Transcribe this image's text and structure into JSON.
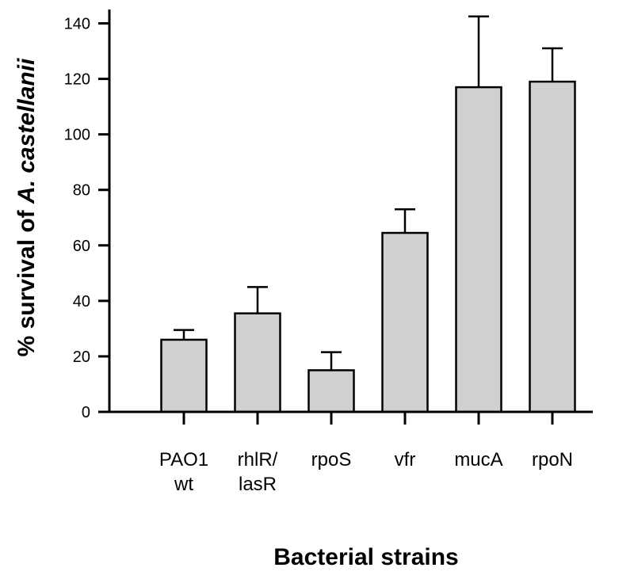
{
  "chart_data": {
    "type": "bar",
    "categories": [
      [
        "PAO1",
        "wt"
      ],
      [
        "rhlR/",
        "lasR"
      ],
      [
        "rpoS"
      ],
      [
        "vfr"
      ],
      [
        "mucA"
      ],
      [
        "rpoN"
      ]
    ],
    "values": [
      26,
      35.5,
      15,
      64.5,
      117,
      119
    ],
    "error_upper": [
      29.5,
      45,
      21.5,
      73,
      142.5,
      131
    ],
    "xlabel": "Bacterial strains",
    "ylabel_prefix": "% survival of ",
    "ylabel_italic": "A. castellanii",
    "ylim": [
      0,
      145
    ],
    "yticks": [
      0,
      20,
      40,
      60,
      80,
      100,
      120,
      140
    ],
    "bar_color": "#d0d0d0",
    "grid": false
  }
}
